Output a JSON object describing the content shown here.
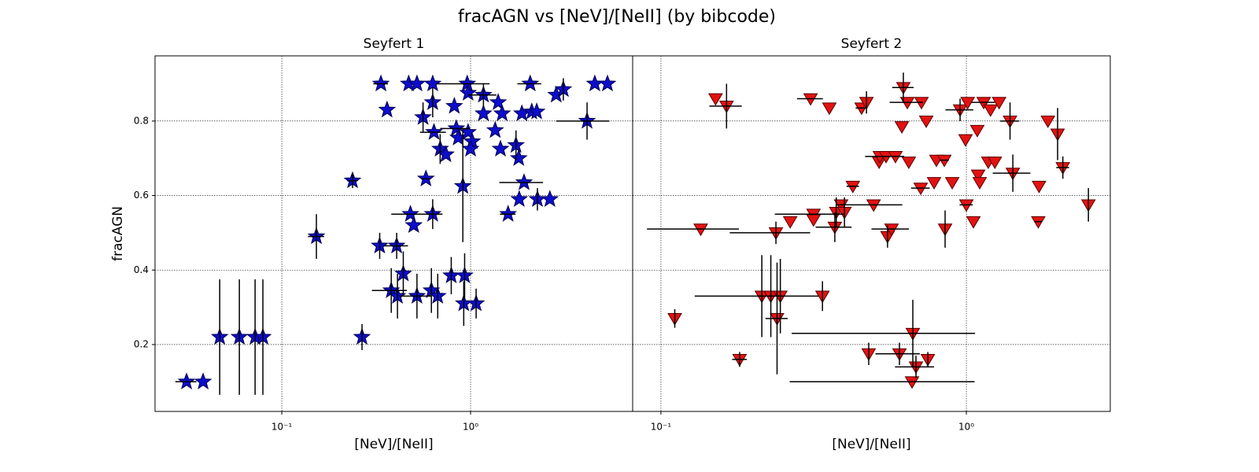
{
  "title": "fracAGN vs [NeV]/[NeII] (by bibcode)",
  "chart_data": [
    {
      "type": "scatter",
      "title": "Seyfert 1",
      "xlabel": "[NeV]/[NeII]",
      "ylabel": "fracAGN",
      "xscale": "log",
      "grid": true,
      "xlim": [
        0.0213,
        7.22
      ],
      "ylim": [
        0.0204,
        0.975
      ],
      "xticks": [
        {
          "value": 0.1,
          "label": "10⁻¹"
        },
        {
          "value": 1,
          "label": "10⁰"
        }
      ],
      "yticks": [
        0.2,
        0.4,
        0.6,
        0.8
      ],
      "series": [
        {
          "marker": "star",
          "color": "#0d0dcc",
          "x": [
            0.0313,
            0.0383,
            0.0469,
            0.0596,
            0.0722,
            0.0794,
            0.1525,
            0.237,
            0.266,
            0.335,
            0.361,
            0.33,
            0.406,
            0.38,
            0.41,
            0.44,
            0.52,
            0.48,
            0.5,
            0.47,
            0.52,
            0.56,
            0.58,
            0.63,
            0.63,
            0.64,
            0.63,
            0.62,
            0.67,
            0.69,
            0.74,
            0.79,
            0.82,
            0.84,
            0.86,
            0.91,
            0.93,
            0.92,
            0.96,
            0.97,
            0.97,
            1.02,
            1.0,
            1.07,
            1.17,
            1.17,
            1.35,
            1.4,
            1.47,
            1.44,
            1.58,
            1.74,
            1.8,
            1.81,
            1.92,
            1.87,
            2.07,
            2.11,
            2.24,
            2.26,
            2.63,
            2.84,
            3.1,
            4.14,
            4.55,
            5.31
          ],
          "values": [
            0.1,
            0.1,
            0.22,
            0.22,
            0.22,
            0.22,
            0.49,
            0.64,
            0.22,
            0.9,
            0.83,
            0.465,
            0.465,
            0.345,
            0.33,
            0.39,
            0.33,
            0.55,
            0.52,
            0.9,
            0.9,
            0.81,
            0.645,
            0.9,
            0.85,
            0.77,
            0.55,
            0.345,
            0.33,
            0.725,
            0.71,
            0.385,
            0.84,
            0.78,
            0.755,
            0.625,
            0.385,
            0.31,
            0.9,
            0.875,
            0.77,
            0.745,
            0.725,
            0.31,
            0.87,
            0.82,
            0.775,
            0.85,
            0.82,
            0.725,
            0.55,
            0.735,
            0.7,
            0.59,
            0.635,
            0.82,
            0.9,
            0.825,
            0.825,
            0.59,
            0.59,
            0.87,
            0.885,
            0.8,
            0.9,
            0.9
          ],
          "xerr": [
            0.004,
            null,
            null,
            null,
            null,
            null,
            0.015,
            0.015,
            null,
            0.03,
            null,
            null,
            0.06,
            0.08,
            null,
            null,
            0.1,
            0.1,
            null,
            null,
            null,
            null,
            0.03,
            null,
            null,
            0.1,
            0.08,
            null,
            null,
            null,
            null,
            null,
            null,
            0.15,
            null,
            null,
            null,
            null,
            0.3,
            null,
            null,
            null,
            null,
            null,
            0.2,
            null,
            null,
            null,
            null,
            null,
            0.15,
            null,
            null,
            null,
            0.5,
            null,
            0.3,
            null,
            null,
            null,
            null,
            null,
            null,
            1.3,
            null,
            null
          ],
          "yerr": [
            null,
            null,
            0.155,
            0.155,
            0.155,
            0.155,
            0.06,
            0.02,
            0.035,
            null,
            null,
            0.035,
            0.035,
            0.06,
            0.06,
            0.06,
            0.06,
            null,
            null,
            null,
            null,
            0.04,
            null,
            null,
            0.04,
            null,
            0.04,
            0.06,
            0.06,
            0.04,
            null,
            0.05,
            null,
            null,
            null,
            0.15,
            0.06,
            0.06,
            null,
            null,
            null,
            null,
            null,
            0.04,
            0.03,
            null,
            null,
            null,
            null,
            null,
            null,
            0.04,
            null,
            null,
            null,
            null,
            null,
            null,
            null,
            0.03,
            null,
            null,
            0.03,
            0.05,
            null,
            null
          ]
        }
      ]
    },
    {
      "type": "scatter",
      "title": "Seyfert 2",
      "xlabel": "[NeV]/[NeII]",
      "xscale": "log",
      "grid": true,
      "xlim": [
        0.0808,
        2.96
      ],
      "ylim": [
        0.0204,
        0.975
      ],
      "xticks": [
        {
          "value": 0.1,
          "label": "10⁻¹"
        },
        {
          "value": 1,
          "label": "10⁰"
        }
      ],
      "series": [
        {
          "marker": "triangle-down",
          "color": "#e31212",
          "x": [
            0.111,
            0.135,
            0.151,
            0.164,
            0.181,
            0.214,
            0.229,
            0.238,
            0.24,
            0.246,
            0.265,
            0.309,
            0.316,
            0.316,
            0.338,
            0.356,
            0.371,
            0.375,
            0.389,
            0.399,
            0.425,
            0.454,
            0.471,
            0.479,
            0.497,
            0.518,
            0.521,
            0.546,
            0.552,
            0.569,
            0.586,
            0.604,
            0.615,
            0.622,
            0.641,
            0.648,
            0.664,
            0.668,
            0.684,
            0.709,
            0.713,
            0.739,
            0.748,
            0.784,
            0.798,
            0.847,
            0.852,
            0.899,
            0.954,
            0.994,
            1.0,
            1.01,
            1.055,
            1.086,
            1.093,
            1.106,
            1.14,
            1.18,
            1.2,
            1.24,
            1.28,
            1.39,
            1.42,
            1.72,
            1.73,
            1.85,
            1.99,
            2.07,
            2.51
          ],
          "values": [
            0.27,
            0.51,
            0.86,
            0.84,
            0.16,
            0.33,
            0.33,
            0.5,
            0.27,
            0.33,
            0.53,
            0.86,
            0.55,
            0.535,
            0.33,
            0.835,
            0.515,
            0.555,
            0.575,
            0.555,
            0.625,
            0.835,
            0.85,
            0.175,
            0.575,
            0.69,
            0.705,
            0.705,
            0.49,
            0.51,
            0.705,
            0.175,
            0.785,
            0.89,
            0.85,
            0.69,
            0.1,
            0.23,
            0.14,
            0.62,
            0.85,
            0.8,
            0.16,
            0.635,
            0.695,
            0.695,
            0.51,
            0.635,
            0.83,
            0.75,
            0.575,
            0.85,
            0.53,
            0.775,
            0.655,
            0.635,
            0.85,
            0.69,
            0.83,
            0.69,
            0.85,
            0.8,
            0.66,
            0.53,
            0.625,
            0.8,
            0.765,
            0.675,
            0.575
          ],
          "xerr": [
            null,
            0.045,
            null,
            0.02,
            0.01,
            null,
            0.1,
            0.07,
            0.02,
            null,
            null,
            0.03,
            0.08,
            null,
            null,
            null,
            0.05,
            null,
            null,
            null,
            0.02,
            0.02,
            null,
            null,
            0.12,
            null,
            null,
            0.08,
            null,
            0.08,
            null,
            0.1,
            null,
            0.05,
            0.08,
            null,
            0.4,
            0.4,
            0.1,
            0.05,
            null,
            null,
            null,
            null,
            null,
            0.03,
            null,
            null,
            0.1,
            null,
            0.05,
            null,
            null,
            null,
            null,
            null,
            0.1,
            null,
            null,
            null,
            null,
            0.1,
            0.2,
            0.05,
            null,
            null,
            null,
            0.1,
            null
          ],
          "yerr": [
            0.025,
            null,
            null,
            0.06,
            0.02,
            0.11,
            0.11,
            0.03,
            0.15,
            0.1,
            null,
            null,
            null,
            null,
            0.04,
            null,
            0.04,
            0.04,
            null,
            0.04,
            null,
            null,
            0.03,
            0.03,
            null,
            null,
            null,
            null,
            0.03,
            null,
            null,
            0.03,
            null,
            0.04,
            null,
            null,
            null,
            0.09,
            0.03,
            null,
            null,
            null,
            0.02,
            null,
            null,
            null,
            0.05,
            null,
            0.03,
            null,
            null,
            null,
            null,
            null,
            null,
            null,
            null,
            null,
            null,
            null,
            null,
            0.05,
            0.05,
            null,
            null,
            null,
            0.07,
            0.03,
            0.045
          ]
        }
      ]
    }
  ]
}
